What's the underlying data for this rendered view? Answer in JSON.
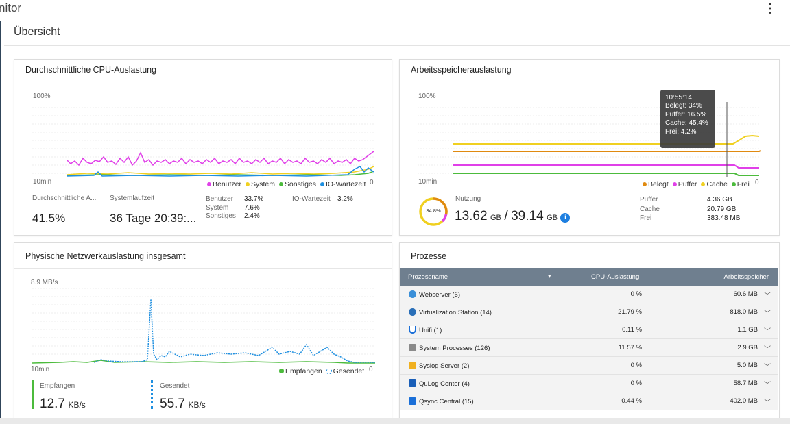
{
  "app": {
    "title": "nitor",
    "menu_icon": "kebab-menu-icon"
  },
  "page": {
    "title": "Übersicht"
  },
  "cpu": {
    "title": "Durchschnittliche CPU-Auslastung",
    "y_top": "100%",
    "x_left": "10min",
    "x_right": "0",
    "legend": [
      "Benutzer",
      "System",
      "Sonstiges",
      "IO-Wartezeit"
    ],
    "avg_label": "Durchschnittliche A...",
    "avg_value": "41.5%",
    "uptime_label": "Systemlaufzeit",
    "uptime_value": "36 Tage 20:39:...",
    "stats": [
      {
        "label": "Benutzer",
        "value": "33.7%"
      },
      {
        "label": "System",
        "value": "7.6%"
      },
      {
        "label": "Sonstiges",
        "value": "2.4%"
      }
    ],
    "io_label": "IO-Wartezeit",
    "io_value": "3.2%",
    "colors": {
      "Benutzer": "#e040e8",
      "System": "#f0d020",
      "Sonstiges": "#4cbb3c",
      "IO-Wartezeit": "#1e8fe0"
    }
  },
  "memory": {
    "title": "Arbeitsspeicherauslastung",
    "y_top": "100%",
    "x_left": "10min",
    "x_right": "0",
    "legend": [
      "Belegt",
      "Puffer",
      "Cache",
      "Frei"
    ],
    "tooltip": [
      "10:55:14",
      "Belegt: 34%",
      "Puffer: 16.5%",
      "Cache: 45.4%",
      "Frei: 4.2%"
    ],
    "ring_value": "34.8%",
    "usage_label": "Nutzung",
    "used": "13.62",
    "used_unit": "GB",
    "separator": "/",
    "total": "39.14",
    "total_unit": "GB",
    "info_icon": "info-icon",
    "details": [
      {
        "label": "Puffer",
        "value": "4.36 GB"
      },
      {
        "label": "Cache",
        "value": "20.79 GB"
      },
      {
        "label": "Frei",
        "value": "383.48 MB"
      }
    ],
    "colors": {
      "Belegt": "#e08a10",
      "Puffer": "#e040e8",
      "Cache": "#f0d020",
      "Frei": "#4cbb3c"
    }
  },
  "network": {
    "title": "Physische Netzwerkauslastung insgesamt",
    "y_top": "8.9 MB/s",
    "x_left": "10min",
    "x_right": "0",
    "legend": [
      "Empfangen",
      "Gesendet"
    ],
    "rx_label": "Empfangen",
    "rx_value": "12.7",
    "rx_unit": "KB/s",
    "tx_label": "Gesendet",
    "tx_value": "55.7",
    "tx_unit": "KB/s",
    "colors": {
      "Empfangen": "#4cbb3c",
      "Gesendet": "#1e8fe0"
    }
  },
  "processes": {
    "title": "Prozesse",
    "headers": {
      "name": "Prozessname",
      "cpu": "CPU-Auslastung",
      "mem": "Arbeitsspeicher"
    },
    "rows": [
      {
        "name": "Webserver (6)",
        "cpu": "0 %",
        "mem": "60.6 MB",
        "icon": "webserver-icon",
        "color": "#3a8fd8"
      },
      {
        "name": "Virtualization Station (14)",
        "cpu": "21.79 %",
        "mem": "818.0 MB",
        "icon": "virtualization-icon",
        "color": "#2a6fb8"
      },
      {
        "name": "Unifi (1)",
        "cpu": "0.11 %",
        "mem": "1.1 GB",
        "icon": "unifi-icon",
        "color": "#1a6fd8"
      },
      {
        "name": "System Processes (126)",
        "cpu": "11.57 %",
        "mem": "2.9 GB",
        "icon": "system-processes-icon",
        "color": "#8a8a8a"
      },
      {
        "name": "Syslog Server (2)",
        "cpu": "0 %",
        "mem": "5.0 MB",
        "icon": "syslog-icon",
        "color": "#f0b020"
      },
      {
        "name": "QuLog Center (4)",
        "cpu": "0 %",
        "mem": "58.7 MB",
        "icon": "qulog-icon",
        "color": "#1a5fb8"
      },
      {
        "name": "Qsync Central (15)",
        "cpu": "0.44 %",
        "mem": "402.0 MB",
        "icon": "qsync-icon",
        "color": "#1a6fd8"
      }
    ]
  }
}
